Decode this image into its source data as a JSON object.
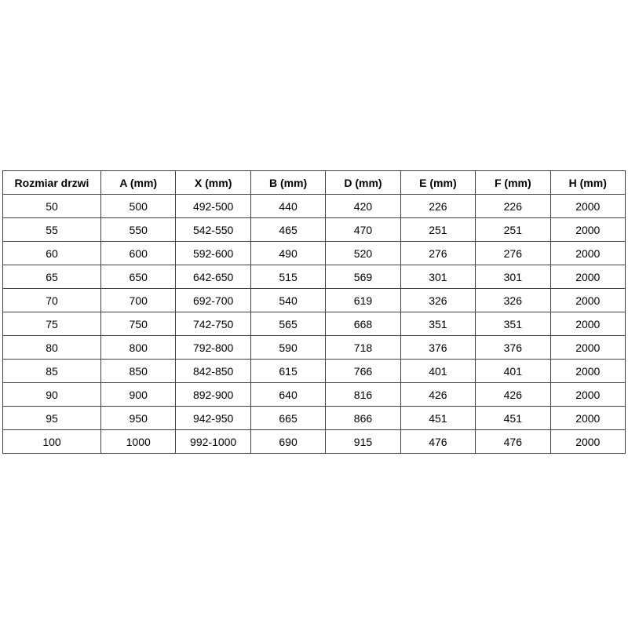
{
  "page": {
    "background_color": "#ffffff",
    "border_color": "#404040",
    "text_color": "#000000"
  },
  "table": {
    "name": "door-size-dimensions-table",
    "columns": [
      "Rozmiar drzwi",
      "A (mm)",
      "X (mm)",
      "B (mm)",
      "D (mm)",
      "E (mm)",
      "F (mm)",
      "H (mm)"
    ],
    "rows": [
      [
        "50",
        "500",
        "492-500",
        "440",
        "420",
        "226",
        "226",
        "2000"
      ],
      [
        "55",
        "550",
        "542-550",
        "465",
        "470",
        "251",
        "251",
        "2000"
      ],
      [
        "60",
        "600",
        "592-600",
        "490",
        "520",
        "276",
        "276",
        "2000"
      ],
      [
        "65",
        "650",
        "642-650",
        "515",
        "569",
        "301",
        "301",
        "2000"
      ],
      [
        "70",
        "700",
        "692-700",
        "540",
        "619",
        "326",
        "326",
        "2000"
      ],
      [
        "75",
        "750",
        "742-750",
        "565",
        "668",
        "351",
        "351",
        "2000"
      ],
      [
        "80",
        "800",
        "792-800",
        "590",
        "718",
        "376",
        "376",
        "2000"
      ],
      [
        "85",
        "850",
        "842-850",
        "615",
        "766",
        "401",
        "401",
        "2000"
      ],
      [
        "90",
        "900",
        "892-900",
        "640",
        "816",
        "426",
        "426",
        "2000"
      ],
      [
        "95",
        "950",
        "942-950",
        "665",
        "866",
        "451",
        "451",
        "2000"
      ],
      [
        "100",
        "1000",
        "992-1000",
        "690",
        "915",
        "476",
        "476",
        "2000"
      ]
    ]
  }
}
